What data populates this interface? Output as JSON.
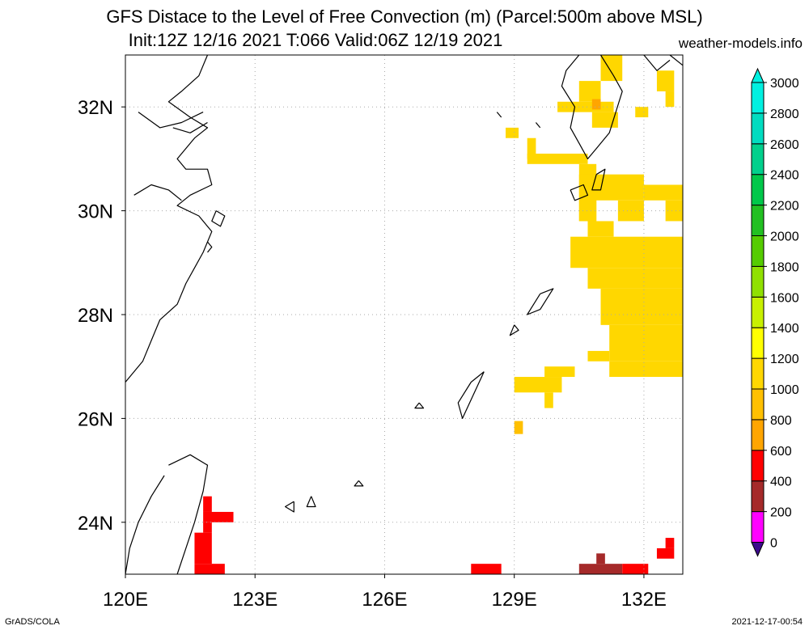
{
  "header": {
    "title_line1": "GFS Distace to the Level of Free Convection (m) (Parcel:500m above MSL)",
    "title_line2": "Init:12Z 12/16 2021 T:066 Valid:06Z 12/19 2021",
    "site": "weather-models.info"
  },
  "footer": {
    "credit": "GrADS/COLA",
    "timestamp": "2021-12-17-00:54"
  },
  "map": {
    "lon_range": [
      120,
      132.9
    ],
    "lat_range": [
      23,
      33
    ],
    "lon_ticks": [
      120,
      123,
      126,
      129,
      132
    ],
    "lat_ticks": [
      24,
      26,
      28,
      30,
      32
    ],
    "lon_labels": [
      "120E",
      "123E",
      "126E",
      "129E",
      "132E"
    ],
    "lat_labels": [
      "24N",
      "26N",
      "28N",
      "30N",
      "32N"
    ],
    "cells": [
      {
        "lon0": 131.0,
        "lon1": 131.5,
        "lat0": 32.5,
        "lat1": 33.0,
        "v": 1100
      },
      {
        "lon0": 130.5,
        "lon1": 131.0,
        "lat0": 32.1,
        "lat1": 32.5,
        "v": 1100
      },
      {
        "lon0": 130.0,
        "lon1": 131.3,
        "lat0": 31.9,
        "lat1": 32.1,
        "v": 1100
      },
      {
        "lon0": 130.8,
        "lon1": 131.0,
        "lat0": 31.95,
        "lat1": 32.15,
        "v": 650
      },
      {
        "lon0": 130.8,
        "lon1": 131.4,
        "lat0": 31.6,
        "lat1": 31.9,
        "v": 1100
      },
      {
        "lon0": 132.3,
        "lon1": 132.7,
        "lat0": 32.3,
        "lat1": 32.7,
        "v": 1050
      },
      {
        "lon0": 132.5,
        "lon1": 132.7,
        "lat0": 32.0,
        "lat1": 32.3,
        "v": 1050
      },
      {
        "lon0": 131.8,
        "lon1": 132.1,
        "lat0": 31.8,
        "lat1": 32.0,
        "v": 1050
      },
      {
        "lon0": 128.8,
        "lon1": 129.1,
        "lat0": 31.4,
        "lat1": 31.6,
        "v": 1050
      },
      {
        "lon0": 129.3,
        "lon1": 129.5,
        "lat0": 31.0,
        "lat1": 31.4,
        "v": 1050
      },
      {
        "lon0": 129.3,
        "lon1": 130.7,
        "lat0": 30.9,
        "lat1": 31.1,
        "v": 1050
      },
      {
        "lon0": 130.5,
        "lon1": 130.9,
        "lat0": 29.8,
        "lat1": 30.9,
        "v": 1050
      },
      {
        "lon0": 130.5,
        "lon1": 132.0,
        "lat0": 30.2,
        "lat1": 30.7,
        "v": 1050
      },
      {
        "lon0": 132.0,
        "lon1": 132.9,
        "lat0": 30.2,
        "lat1": 30.5,
        "v": 1050
      },
      {
        "lon0": 130.5,
        "lon1": 130.9,
        "lat0": 29.8,
        "lat1": 30.2,
        "v": 1050
      },
      {
        "lon0": 131.4,
        "lon1": 132.0,
        "lat0": 29.8,
        "lat1": 30.2,
        "v": 1050
      },
      {
        "lon0": 132.5,
        "lon1": 132.9,
        "lat0": 29.8,
        "lat1": 30.2,
        "v": 1050
      },
      {
        "lon0": 130.3,
        "lon1": 132.9,
        "lat0": 28.9,
        "lat1": 29.5,
        "v": 1050
      },
      {
        "lon0": 130.7,
        "lon1": 131.3,
        "lat0": 29.5,
        "lat1": 29.8,
        "v": 1050
      },
      {
        "lon0": 130.7,
        "lon1": 132.9,
        "lat0": 28.5,
        "lat1": 28.9,
        "v": 1050
      },
      {
        "lon0": 131.0,
        "lon1": 132.9,
        "lat0": 27.8,
        "lat1": 28.5,
        "v": 1000
      },
      {
        "lon0": 131.2,
        "lon1": 132.9,
        "lat0": 27.1,
        "lat1": 27.8,
        "v": 1000
      },
      {
        "lon0": 130.7,
        "lon1": 131.2,
        "lat0": 27.1,
        "lat1": 27.3,
        "v": 1050
      },
      {
        "lon0": 131.2,
        "lon1": 132.9,
        "lat0": 26.8,
        "lat1": 27.1,
        "v": 1050
      },
      {
        "lon0": 129.7,
        "lon1": 130.4,
        "lat0": 26.8,
        "lat1": 27.0,
        "v": 1050
      },
      {
        "lon0": 129.0,
        "lon1": 130.1,
        "lat0": 26.5,
        "lat1": 26.8,
        "v": 1050
      },
      {
        "lon0": 129.7,
        "lon1": 129.9,
        "lat0": 26.2,
        "lat1": 26.5,
        "v": 1050
      },
      {
        "lon0": 129.0,
        "lon1": 129.2,
        "lat0": 25.7,
        "lat1": 25.95,
        "v": 950
      },
      {
        "lon0": 121.8,
        "lon1": 122.0,
        "lat0": 24.2,
        "lat1": 24.5,
        "v": 500
      },
      {
        "lon0": 121.8,
        "lon1": 122.5,
        "lat0": 24.0,
        "lat1": 24.2,
        "v": 500
      },
      {
        "lon0": 121.8,
        "lon1": 122.0,
        "lat0": 23.8,
        "lat1": 24.0,
        "v": 500
      },
      {
        "lon0": 121.6,
        "lon1": 122.0,
        "lat0": 23.2,
        "lat1": 23.8,
        "v": 500
      },
      {
        "lon0": 121.6,
        "lon1": 122.3,
        "lat0": 23.0,
        "lat1": 23.2,
        "v": 500
      },
      {
        "lon0": 128.0,
        "lon1": 128.7,
        "lat0": 23.0,
        "lat1": 23.2,
        "v": 500
      },
      {
        "lon0": 130.5,
        "lon1": 131.5,
        "lat0": 23.0,
        "lat1": 23.2,
        "v": 300
      },
      {
        "lon0": 130.9,
        "lon1": 131.1,
        "lat0": 23.2,
        "lat1": 23.4,
        "v": 300
      },
      {
        "lon0": 131.5,
        "lon1": 132.1,
        "lat0": 23.0,
        "lat1": 23.2,
        "v": 500
      },
      {
        "lon0": 132.3,
        "lon1": 132.7,
        "lat0": 23.3,
        "lat1": 23.5,
        "v": 500
      },
      {
        "lon0": 132.5,
        "lon1": 132.7,
        "lat0": 23.5,
        "lat1": 23.7,
        "v": 500
      }
    ],
    "coastlines": [
      [
        [
          121.9,
          33.0
        ],
        [
          121.7,
          32.6
        ],
        [
          121.3,
          32.3
        ],
        [
          121.0,
          32.1
        ],
        [
          121.5,
          31.8
        ],
        [
          121.9,
          31.6
        ],
        [
          121.6,
          31.4
        ],
        [
          121.2,
          31.0
        ],
        [
          121.4,
          30.8
        ],
        [
          121.9,
          30.8
        ],
        [
          122.0,
          30.5
        ],
        [
          121.5,
          30.3
        ],
        [
          121.2,
          30.1
        ],
        [
          121.7,
          29.9
        ],
        [
          122.0,
          29.6
        ],
        [
          121.8,
          29.2
        ],
        [
          121.6,
          28.9
        ],
        [
          121.4,
          28.6
        ],
        [
          121.2,
          28.2
        ],
        [
          120.8,
          27.9
        ],
        [
          120.6,
          27.5
        ],
        [
          120.4,
          27.1
        ],
        [
          120.0,
          26.7
        ]
      ],
      [
        [
          121.8,
          31.9
        ],
        [
          121.3,
          31.7
        ],
        [
          120.8,
          31.6
        ],
        [
          120.3,
          31.9
        ]
      ],
      [
        [
          121.9,
          31.7
        ],
        [
          121.5,
          31.5
        ],
        [
          121.1,
          31.6
        ]
      ],
      [
        [
          120.2,
          30.3
        ],
        [
          120.6,
          30.5
        ],
        [
          121.0,
          30.4
        ],
        [
          121.3,
          30.2
        ]
      ],
      [
        [
          122.1,
          30.0
        ],
        [
          122.3,
          29.9
        ],
        [
          122.2,
          29.7
        ],
        [
          122.0,
          29.8
        ],
        [
          122.1,
          30.0
        ]
      ],
      [
        [
          121.9,
          29.4
        ],
        [
          122.0,
          29.3
        ],
        [
          121.9,
          29.2
        ]
      ],
      [
        [
          121.0,
          25.1
        ],
        [
          121.5,
          25.3
        ],
        [
          121.9,
          25.1
        ],
        [
          121.8,
          24.6
        ],
        [
          121.6,
          24.0
        ],
        [
          121.4,
          23.5
        ],
        [
          121.2,
          23.0
        ]
      ],
      [
        [
          120.9,
          24.9
        ],
        [
          120.6,
          24.5
        ],
        [
          120.3,
          24.0
        ],
        [
          120.1,
          23.5
        ],
        [
          120.0,
          23.0
        ]
      ],
      [
        [
          131.0,
          33.0
        ],
        [
          131.3,
          32.6
        ],
        [
          131.5,
          32.3
        ],
        [
          131.2,
          31.5
        ],
        [
          130.9,
          31.2
        ],
        [
          130.7,
          31.0
        ],
        [
          130.5,
          31.3
        ],
        [
          130.3,
          31.6
        ],
        [
          130.4,
          32.0
        ],
        [
          130.1,
          32.4
        ],
        [
          130.2,
          32.7
        ],
        [
          130.5,
          33.0
        ]
      ],
      [
        [
          130.3,
          30.4
        ],
        [
          130.6,
          30.5
        ],
        [
          130.7,
          30.3
        ],
        [
          130.4,
          30.2
        ],
        [
          130.3,
          30.4
        ]
      ],
      [
        [
          130.9,
          30.7
        ],
        [
          131.1,
          30.8
        ],
        [
          131.0,
          30.4
        ],
        [
          130.8,
          30.4
        ],
        [
          130.9,
          30.7
        ]
      ],
      [
        [
          129.6,
          28.4
        ],
        [
          129.9,
          28.5
        ],
        [
          129.6,
          28.1
        ],
        [
          129.3,
          28.0
        ],
        [
          129.6,
          28.4
        ]
      ],
      [
        [
          129.0,
          27.8
        ],
        [
          129.1,
          27.7
        ],
        [
          128.9,
          27.6
        ],
        [
          129.0,
          27.8
        ]
      ],
      [
        [
          128.3,
          26.9
        ],
        [
          128.0,
          26.7
        ],
        [
          127.7,
          26.3
        ],
        [
          127.8,
          26.0
        ],
        [
          128.3,
          26.9
        ]
      ],
      [
        [
          126.8,
          26.3
        ],
        [
          126.9,
          26.2
        ],
        [
          126.7,
          26.2
        ],
        [
          126.8,
          26.3
        ]
      ],
      [
        [
          125.4,
          24.8
        ],
        [
          125.3,
          24.7
        ],
        [
          125.5,
          24.7
        ],
        [
          125.4,
          24.8
        ]
      ],
      [
        [
          124.3,
          24.5
        ],
        [
          124.2,
          24.3
        ],
        [
          124.4,
          24.3
        ],
        [
          124.3,
          24.5
        ]
      ],
      [
        [
          123.9,
          24.4
        ],
        [
          123.7,
          24.3
        ],
        [
          123.9,
          24.2
        ],
        [
          123.9,
          24.4
        ]
      ],
      [
        [
          132.0,
          33.0
        ],
        [
          132.3,
          32.7
        ],
        [
          132.6,
          32.9
        ]
      ],
      [
        [
          132.6,
          33.0
        ],
        [
          132.9,
          32.8
        ]
      ],
      [
        [
          128.6,
          31.9
        ],
        [
          128.7,
          31.8
        ]
      ],
      [
        [
          129.5,
          31.7
        ],
        [
          129.6,
          31.6
        ]
      ]
    ]
  },
  "colorbar": {
    "labels": [
      "0",
      "200",
      "400",
      "600",
      "800",
      "1000",
      "1200",
      "1400",
      "1600",
      "1800",
      "2000",
      "2200",
      "2400",
      "2600",
      "2800",
      "3000"
    ],
    "colors": [
      "#3c0a8c",
      "#ff00ff",
      "#a52a2a",
      "#ff0000",
      "#ffa500",
      "#ffc000",
      "#ffd700",
      "#ffff00",
      "#c8f000",
      "#90e000",
      "#55cc00",
      "#22c022",
      "#00c84a",
      "#00d08c",
      "#00dcc0",
      "#00f0e0"
    ]
  }
}
